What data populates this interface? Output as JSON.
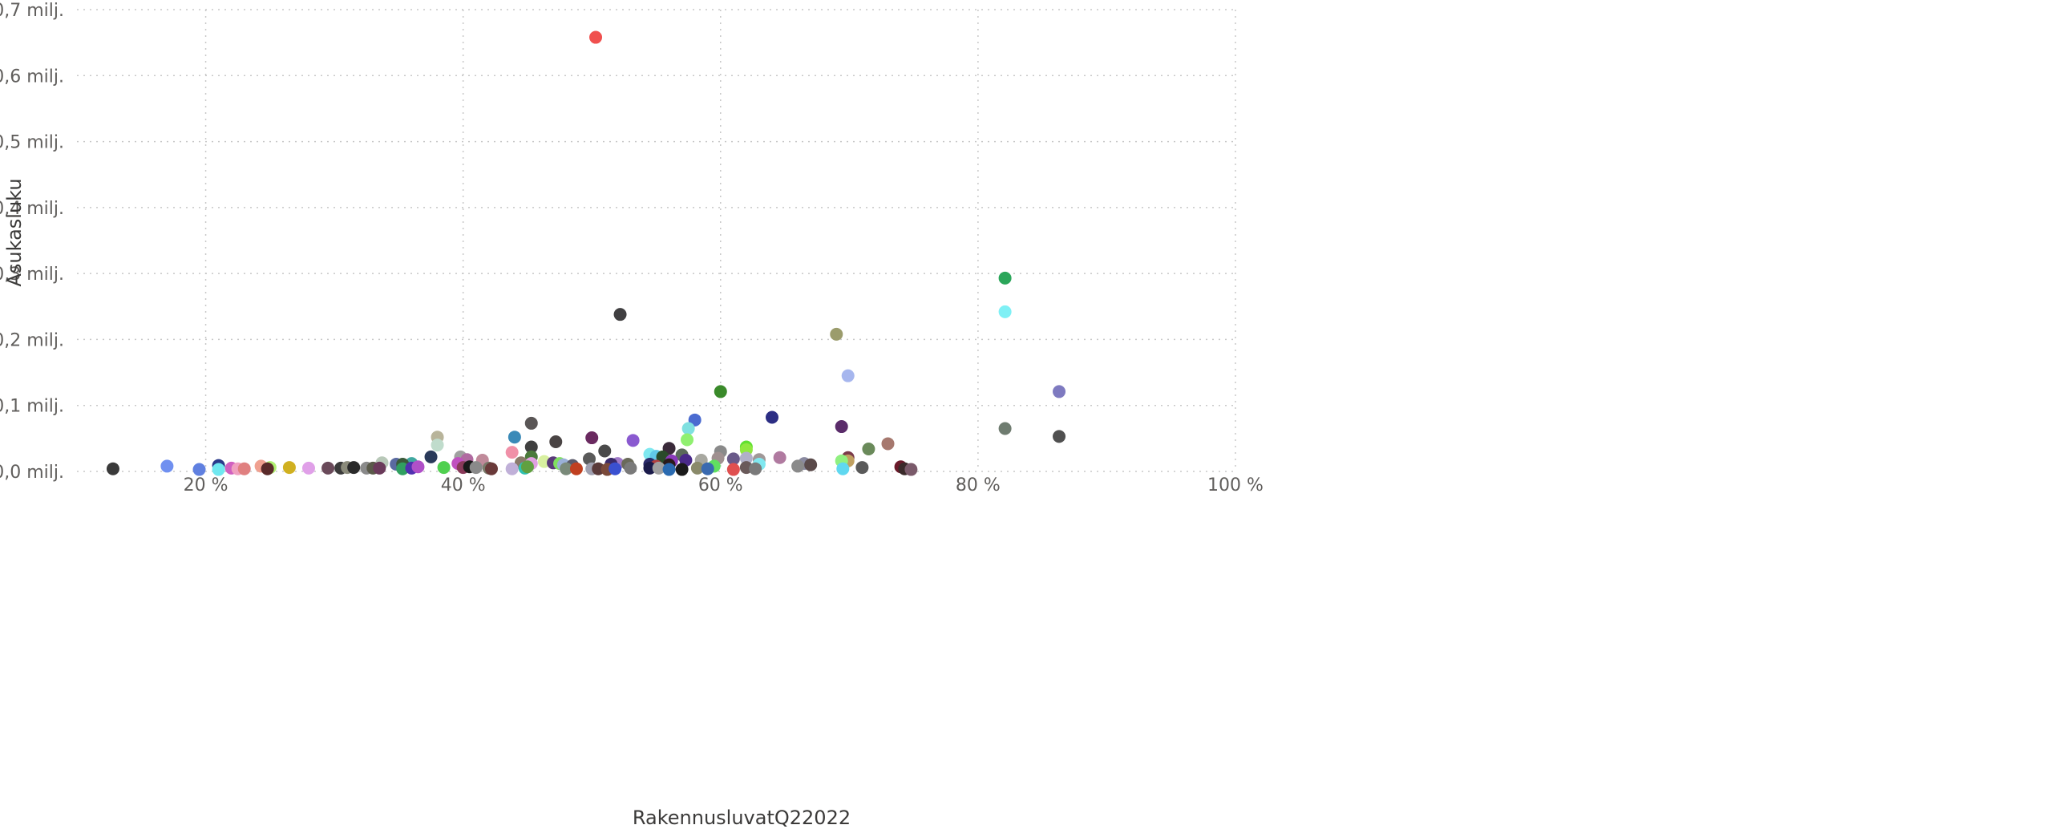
{
  "chart_data": {
    "type": "scatter",
    "title": "",
    "xlabel": "RakennusluvatQ22022",
    "ylabel": "Asukasluku",
    "xlim": [
      10,
      100
    ],
    "ylim": [
      0,
      0.7
    ],
    "x_ticks": [
      {
        "value": 20,
        "label": "20 %"
      },
      {
        "value": 40,
        "label": "40 %"
      },
      {
        "value": 60,
        "label": "60 %"
      },
      {
        "value": 80,
        "label": "80 %"
      },
      {
        "value": 100,
        "label": "100 %"
      }
    ],
    "y_ticks": [
      {
        "value": 0.0,
        "label": "0,0 milj."
      },
      {
        "value": 0.1,
        "label": "0,1 milj."
      },
      {
        "value": 0.2,
        "label": "0,2 milj."
      },
      {
        "value": 0.3,
        "label": "0,3 milj."
      },
      {
        "value": 0.4,
        "label": "0,4 milj."
      },
      {
        "value": 0.5,
        "label": "0,5 milj."
      },
      {
        "value": 0.6,
        "label": "0,6 milj."
      },
      {
        "value": 0.7,
        "label": "0,7 milj."
      }
    ],
    "grid": true,
    "points": [
      {
        "x": 50.3,
        "y": 0.658,
        "color": "#F0504E"
      },
      {
        "x": 82.1,
        "y": 0.293,
        "color": "#2BA65A"
      },
      {
        "x": 82.1,
        "y": 0.242,
        "color": "#7FF0F5"
      },
      {
        "x": 52.2,
        "y": 0.238,
        "color": "#403F41"
      },
      {
        "x": 69.0,
        "y": 0.208,
        "color": "#9B9C6C"
      },
      {
        "x": 69.9,
        "y": 0.145,
        "color": "#A6B6EE"
      },
      {
        "x": 60.0,
        "y": 0.121,
        "color": "#3A8A2A"
      },
      {
        "x": 86.3,
        "y": 0.121,
        "color": "#7E7AC0"
      },
      {
        "x": 64.0,
        "y": 0.082,
        "color": "#2C2E84"
      },
      {
        "x": 58.0,
        "y": 0.078,
        "color": "#4B6BD0"
      },
      {
        "x": 45.3,
        "y": 0.073,
        "color": "#5A5656"
      },
      {
        "x": 69.4,
        "y": 0.068,
        "color": "#5A2C6A"
      },
      {
        "x": 82.1,
        "y": 0.065,
        "color": "#6F7C70"
      },
      {
        "x": 57.5,
        "y": 0.065,
        "color": "#7FE0E0"
      },
      {
        "x": 86.3,
        "y": 0.053,
        "color": "#505050"
      },
      {
        "x": 38.0,
        "y": 0.052,
        "color": "#B8B49A"
      },
      {
        "x": 44.0,
        "y": 0.052,
        "color": "#3A8AB8"
      },
      {
        "x": 50.0,
        "y": 0.051,
        "color": "#6A2A60"
      },
      {
        "x": 57.4,
        "y": 0.048,
        "color": "#90F070"
      },
      {
        "x": 53.2,
        "y": 0.047,
        "color": "#8A5AD0"
      },
      {
        "x": 47.2,
        "y": 0.045,
        "color": "#4A4444"
      },
      {
        "x": 73.0,
        "y": 0.042,
        "color": "#A6786E"
      },
      {
        "x": 38.0,
        "y": 0.04,
        "color": "#C0DCCC"
      },
      {
        "x": 45.3,
        "y": 0.037,
        "color": "#404040"
      },
      {
        "x": 62.0,
        "y": 0.037,
        "color": "#60E030"
      },
      {
        "x": 56.0,
        "y": 0.035,
        "color": "#3A2A3A"
      },
      {
        "x": 71.5,
        "y": 0.034,
        "color": "#6A8A5A"
      },
      {
        "x": 62.0,
        "y": 0.033,
        "color": "#90E840"
      },
      {
        "x": 51.0,
        "y": 0.031,
        "color": "#4A4A4A"
      },
      {
        "x": 60.0,
        "y": 0.03,
        "color": "#8A8A8A"
      },
      {
        "x": 43.8,
        "y": 0.029,
        "color": "#F090A8"
      },
      {
        "x": 54.5,
        "y": 0.026,
        "color": "#7FE8F0"
      },
      {
        "x": 57.0,
        "y": 0.025,
        "color": "#5A6A5A"
      },
      {
        "x": 55.0,
        "y": 0.023,
        "color": "#60C8E8"
      },
      {
        "x": 37.5,
        "y": 0.022,
        "color": "#2A3A5A"
      },
      {
        "x": 39.8,
        "y": 0.022,
        "color": "#A0A0A0"
      },
      {
        "x": 45.3,
        "y": 0.022,
        "color": "#4A7A3A"
      },
      {
        "x": 55.5,
        "y": 0.022,
        "color": "#2A4A2A"
      },
      {
        "x": 64.6,
        "y": 0.021,
        "color": "#B07AA0"
      },
      {
        "x": 69.9,
        "y": 0.021,
        "color": "#7A3A4A"
      },
      {
        "x": 62.0,
        "y": 0.02,
        "color": "#B0B0C8"
      },
      {
        "x": 59.8,
        "y": 0.02,
        "color": "#A09090"
      },
      {
        "x": 61.0,
        "y": 0.019,
        "color": "#6A5A8A"
      },
      {
        "x": 49.8,
        "y": 0.019,
        "color": "#5A5A5A"
      },
      {
        "x": 63.0,
        "y": 0.018,
        "color": "#A09898"
      },
      {
        "x": 40.3,
        "y": 0.018,
        "color": "#B06AA0"
      },
      {
        "x": 58.5,
        "y": 0.017,
        "color": "#A8A8A0"
      },
      {
        "x": 41.5,
        "y": 0.017,
        "color": "#C08A9A"
      },
      {
        "x": 57.3,
        "y": 0.017,
        "color": "#4A2A8A"
      },
      {
        "x": 56.2,
        "y": 0.016,
        "color": "#8A3ABA"
      },
      {
        "x": 69.9,
        "y": 0.016,
        "color": "#C0A060"
      },
      {
        "x": 69.4,
        "y": 0.016,
        "color": "#90F080"
      },
      {
        "x": 46.3,
        "y": 0.015,
        "color": "#D8F0A0"
      },
      {
        "x": 33.7,
        "y": 0.013,
        "color": "#B8C8B8"
      },
      {
        "x": 44.5,
        "y": 0.013,
        "color": "#8A7A6A"
      },
      {
        "x": 47.0,
        "y": 0.013,
        "color": "#5A3A7A"
      },
      {
        "x": 47.5,
        "y": 0.012,
        "color": "#80E060"
      },
      {
        "x": 36.0,
        "y": 0.012,
        "color": "#40A8A0"
      },
      {
        "x": 34.8,
        "y": 0.011,
        "color": "#5A6AA0"
      },
      {
        "x": 35.3,
        "y": 0.011,
        "color": "#3A5A3A"
      },
      {
        "x": 39.6,
        "y": 0.012,
        "color": "#C050C0"
      },
      {
        "x": 45.3,
        "y": 0.012,
        "color": "#E0A0E0"
      },
      {
        "x": 52.0,
        "y": 0.012,
        "color": "#A07AC8"
      },
      {
        "x": 51.5,
        "y": 0.011,
        "color": "#3A2A6A"
      },
      {
        "x": 52.8,
        "y": 0.011,
        "color": "#6A6A5A"
      },
      {
        "x": 54.5,
        "y": 0.011,
        "color": "#2A2A6A"
      },
      {
        "x": 56.0,
        "y": 0.01,
        "color": "#2A1A1A"
      },
      {
        "x": 66.5,
        "y": 0.012,
        "color": "#8A8AA0"
      },
      {
        "x": 67.0,
        "y": 0.01,
        "color": "#5A4A4A"
      },
      {
        "x": 63.0,
        "y": 0.011,
        "color": "#80E8F0"
      },
      {
        "x": 47.8,
        "y": 0.01,
        "color": "#9AB0D8"
      },
      {
        "x": 48.5,
        "y": 0.009,
        "color": "#5A5A6A"
      },
      {
        "x": 66.0,
        "y": 0.008,
        "color": "#8A8A8A"
      },
      {
        "x": 55.0,
        "y": 0.008,
        "color": "#B04040"
      },
      {
        "x": 59.5,
        "y": 0.008,
        "color": "#60E060"
      },
      {
        "x": 74.0,
        "y": 0.007,
        "color": "#6A1A2A"
      },
      {
        "x": 71.0,
        "y": 0.006,
        "color": "#5A5A5A"
      },
      {
        "x": 17.0,
        "y": 0.008,
        "color": "#7090F0"
      },
      {
        "x": 21.0,
        "y": 0.009,
        "color": "#2A3A8A"
      },
      {
        "x": 24.3,
        "y": 0.008,
        "color": "#F0A090"
      },
      {
        "x": 25.0,
        "y": 0.006,
        "color": "#B0F070"
      },
      {
        "x": 26.5,
        "y": 0.006,
        "color": "#D0B020"
      },
      {
        "x": 28.0,
        "y": 0.005,
        "color": "#E0A0E8"
      },
      {
        "x": 29.5,
        "y": 0.005,
        "color": "#6A4A5A"
      },
      {
        "x": 30.5,
        "y": 0.005,
        "color": "#3A3A3A"
      },
      {
        "x": 31.0,
        "y": 0.006,
        "color": "#8A8A7A"
      },
      {
        "x": 31.5,
        "y": 0.006,
        "color": "#2A2A2A"
      },
      {
        "x": 32.5,
        "y": 0.005,
        "color": "#8A8A8A"
      },
      {
        "x": 33.0,
        "y": 0.005,
        "color": "#5A5A4A"
      },
      {
        "x": 33.5,
        "y": 0.005,
        "color": "#6A3A5A"
      },
      {
        "x": 22.0,
        "y": 0.005,
        "color": "#D060C0"
      },
      {
        "x": 22.5,
        "y": 0.004,
        "color": "#F0A0C0"
      },
      {
        "x": 23.0,
        "y": 0.004,
        "color": "#E08080"
      },
      {
        "x": 24.8,
        "y": 0.004,
        "color": "#5A2A2A"
      },
      {
        "x": 12.8,
        "y": 0.004,
        "color": "#3A3A3A"
      },
      {
        "x": 19.5,
        "y": 0.003,
        "color": "#6080E0"
      },
      {
        "x": 21.0,
        "y": 0.003,
        "color": "#70E8F0"
      },
      {
        "x": 35.3,
        "y": 0.004,
        "color": "#30A060"
      },
      {
        "x": 36.0,
        "y": 0.005,
        "color": "#5030B0"
      },
      {
        "x": 36.5,
        "y": 0.007,
        "color": "#B050C8"
      },
      {
        "x": 38.5,
        "y": 0.006,
        "color": "#50D050"
      },
      {
        "x": 40.0,
        "y": 0.006,
        "color": "#8A3A5A"
      },
      {
        "x": 40.5,
        "y": 0.007,
        "color": "#1A1A1A"
      },
      {
        "x": 41.0,
        "y": 0.006,
        "color": "#8A8A8A"
      },
      {
        "x": 42.0,
        "y": 0.005,
        "color": "#7A7A6A"
      },
      {
        "x": 42.2,
        "y": 0.004,
        "color": "#6A3A3A"
      },
      {
        "x": 43.8,
        "y": 0.004,
        "color": "#C0B0D8"
      },
      {
        "x": 44.8,
        "y": 0.005,
        "color": "#30C0B0"
      },
      {
        "x": 45.0,
        "y": 0.007,
        "color": "#60A040"
      },
      {
        "x": 48.0,
        "y": 0.004,
        "color": "#7A8A7A"
      },
      {
        "x": 48.8,
        "y": 0.004,
        "color": "#C04020"
      },
      {
        "x": 50.0,
        "y": 0.004,
        "color": "#A0A0B0"
      },
      {
        "x": 50.5,
        "y": 0.004,
        "color": "#5A3A3A"
      },
      {
        "x": 51.2,
        "y": 0.003,
        "color": "#7A4A3A"
      },
      {
        "x": 51.8,
        "y": 0.004,
        "color": "#3A50D0"
      },
      {
        "x": 53.0,
        "y": 0.005,
        "color": "#7A7A7A"
      },
      {
        "x": 54.5,
        "y": 0.005,
        "color": "#1A1A4A"
      },
      {
        "x": 55.2,
        "y": 0.005,
        "color": "#A0A0A0"
      },
      {
        "x": 56.0,
        "y": 0.003,
        "color": "#2A6AB0"
      },
      {
        "x": 57.0,
        "y": 0.003,
        "color": "#1A1A1A"
      },
      {
        "x": 58.2,
        "y": 0.005,
        "color": "#8A8A6A"
      },
      {
        "x": 59.0,
        "y": 0.004,
        "color": "#3A6AB0"
      },
      {
        "x": 61.0,
        "y": 0.003,
        "color": "#E05050"
      },
      {
        "x": 62.0,
        "y": 0.006,
        "color": "#6A5A5A"
      },
      {
        "x": 62.7,
        "y": 0.004,
        "color": "#7A7A7A"
      },
      {
        "x": 69.5,
        "y": 0.004,
        "color": "#60D8F0"
      },
      {
        "x": 74.3,
        "y": 0.004,
        "color": "#3A2A2A"
      },
      {
        "x": 74.8,
        "y": 0.003,
        "color": "#7A5A6A"
      }
    ]
  }
}
